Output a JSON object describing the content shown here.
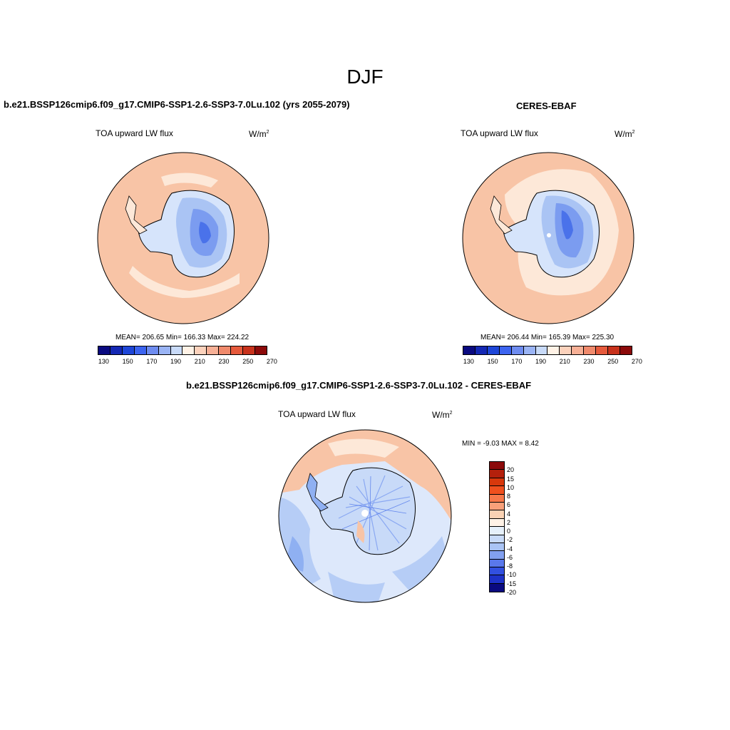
{
  "season": "DJF",
  "panels": {
    "model": {
      "title": "b.e21.BSSP126cmip6.f09_g17.CMIP6-SSP1-2.6-SSP3-7.0Lu.102 (yrs 2055-2079)",
      "variable": "TOA upward LW flux",
      "unit_base": "W/m",
      "unit_exp": "2",
      "stats": "MEAN= 206.65  Min= 166.33  Max= 224.22"
    },
    "obs": {
      "title": "CERES-EBAF",
      "variable": "TOA upward LW flux",
      "unit_base": "W/m",
      "unit_exp": "2",
      "stats": "MEAN= 206.44  Min= 165.39  Max= 225.30"
    },
    "diff": {
      "title": "b.e21.BSSP126cmip6.f09_g17.CMIP6-SSP1-2.6-SSP3-7.0Lu.102 - CERES-EBAF",
      "variable": "TOA upward LW flux",
      "unit_base": "W/m",
      "unit_exp": "2",
      "minmax": "MIN =  -9.03 MAX =   8.42"
    }
  },
  "colorbar_abs": {
    "colors": [
      "#0a0a80",
      "#1428b4",
      "#1e46d8",
      "#3c64f0",
      "#6e8cf0",
      "#9ab4f5",
      "#c8daf8",
      "#fff2e6",
      "#fcd2bc",
      "#f7b096",
      "#f08a6c",
      "#e65a3c",
      "#c8321c",
      "#8c0a0a"
    ],
    "tick_labels": [
      "130",
      "150",
      "170",
      "190",
      "210",
      "230",
      "250",
      "270"
    ]
  },
  "colorbar_diff": {
    "colors": [
      "#8c0a0a",
      "#b4200c",
      "#d8380c",
      "#f0501e",
      "#f7784a",
      "#f8a07a",
      "#fad2b4",
      "#fff2e6",
      "#e6f0fa",
      "#c8daf8",
      "#aac4f5",
      "#82a0f0",
      "#5a78eb",
      "#3250e0",
      "#1e32c8",
      "#0a0a80"
    ],
    "labels": [
      "20",
      "15",
      "10",
      "8",
      "6",
      "4",
      "2",
      "0",
      "-2",
      "-4",
      "-6",
      "-8",
      "-10",
      "-15",
      "-20"
    ]
  },
  "map_colors": {
    "ocean_abs": "#f8c4a6",
    "ice_shelf_abs": "#fde8d8",
    "inland_light": "#d6e4fb",
    "inland_mid": "#aac4f4",
    "inland_dark": "#7b9cf0",
    "inland_core": "#4a72ea",
    "diff_pos": "#f8c4a6",
    "diff_pos_light": "#fde8d8",
    "diff_neg_light": "#dde8fb",
    "diff_neg_mid": "#b6cdf6",
    "diff_neg_dark": "#8fb0f2"
  }
}
